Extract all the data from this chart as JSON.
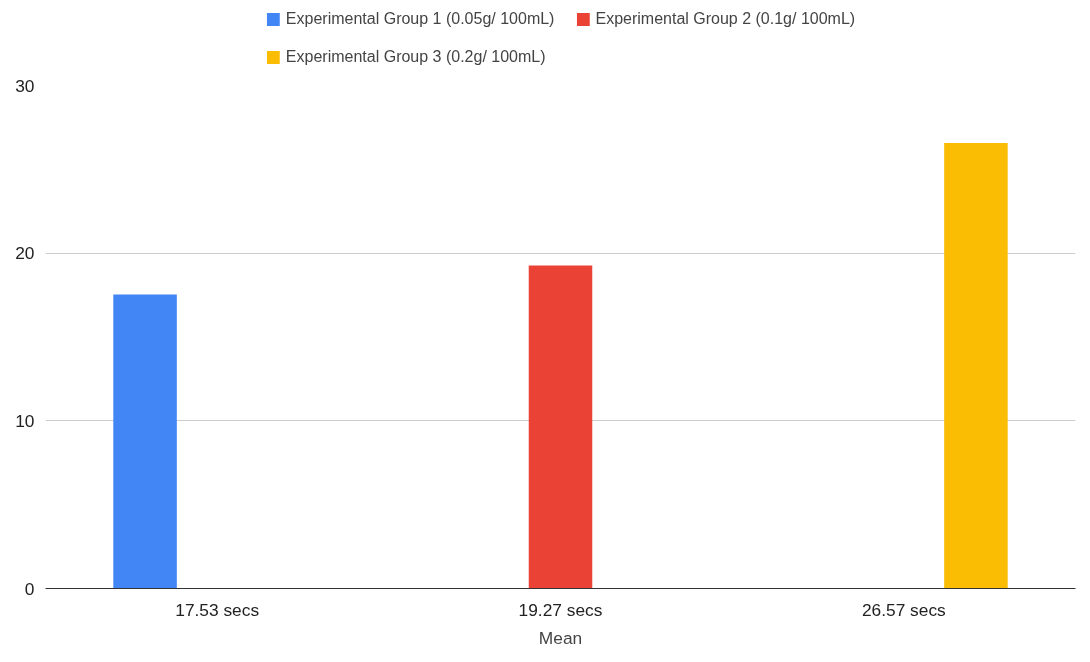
{
  "chart_data": {
    "type": "bar",
    "xlabel": "Mean",
    "categories": [
      "17.53 secs",
      "19.27 secs",
      "26.57 secs"
    ],
    "series": [
      {
        "name": "Experimental Group 1 (0.05g/ 100mL)",
        "color": "#4285f4",
        "values": [
          17.53,
          null,
          null
        ]
      },
      {
        "name": "Experimental Group 2 (0.1g/ 100mL)",
        "color": "#ea4335",
        "values": [
          null,
          19.27,
          null
        ]
      },
      {
        "name": "Experimental Group 3 (0.2g/ 100mL)",
        "color": "#fbbc04",
        "values": [
          null,
          null,
          26.57
        ]
      }
    ],
    "ylim": [
      0,
      30
    ],
    "yticks": [
      0,
      10,
      20,
      30
    ],
    "grid": "y",
    "legend": "top"
  }
}
